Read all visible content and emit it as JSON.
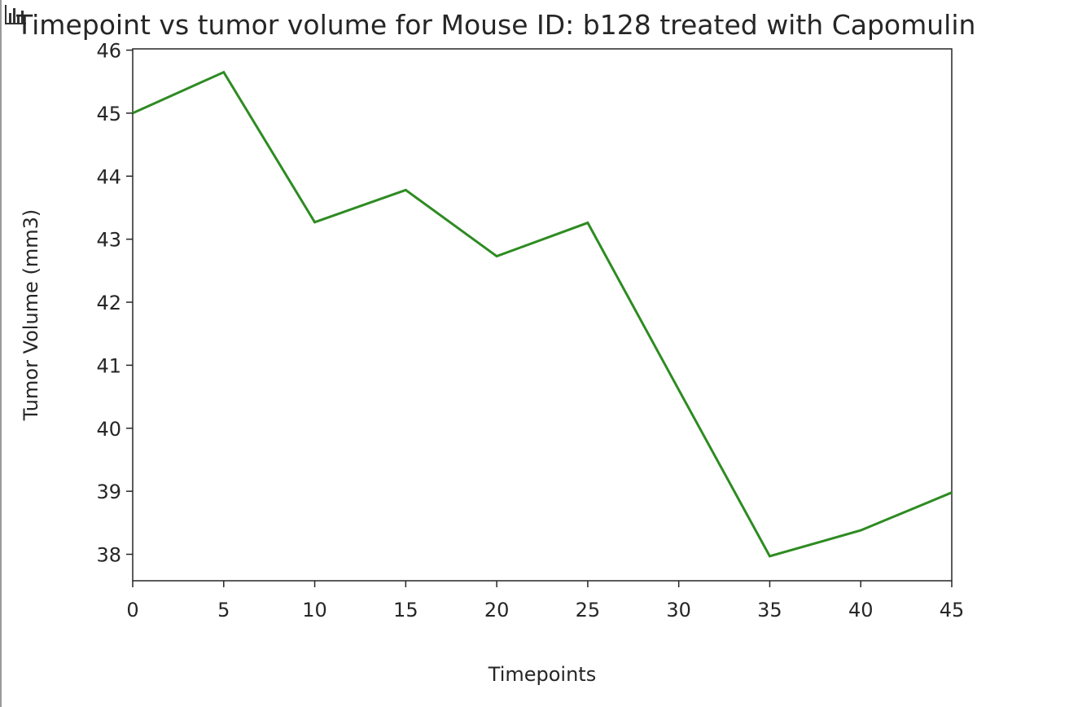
{
  "icons": {
    "corner": "bar-chart-icon"
  },
  "colors": {
    "line": "#2e8b22",
    "axes": "#262626",
    "background": "#ffffff"
  },
  "chart_data": {
    "type": "line",
    "title": "Timepoint vs tumor volume for Mouse ID: b128 treated with Capomulin",
    "xlabel": "Timepoints",
    "ylabel": "Tumor Volume (mm3)",
    "x": [
      0,
      5,
      10,
      15,
      20,
      25,
      30,
      35,
      40,
      45
    ],
    "series": [
      {
        "values": [
          45.0,
          45.65,
          43.27,
          43.78,
          42.73,
          43.26,
          40.61,
          37.97,
          38.38,
          38.98
        ]
      }
    ],
    "xlim": [
      0,
      45
    ],
    "ylim": [
      37.58,
      46.02
    ],
    "xticks": [
      0,
      5,
      10,
      15,
      20,
      25,
      30,
      35,
      40,
      45
    ],
    "yticks": [
      38,
      39,
      40,
      41,
      42,
      43,
      44,
      45,
      46
    ],
    "grid": false,
    "legend": "none"
  }
}
